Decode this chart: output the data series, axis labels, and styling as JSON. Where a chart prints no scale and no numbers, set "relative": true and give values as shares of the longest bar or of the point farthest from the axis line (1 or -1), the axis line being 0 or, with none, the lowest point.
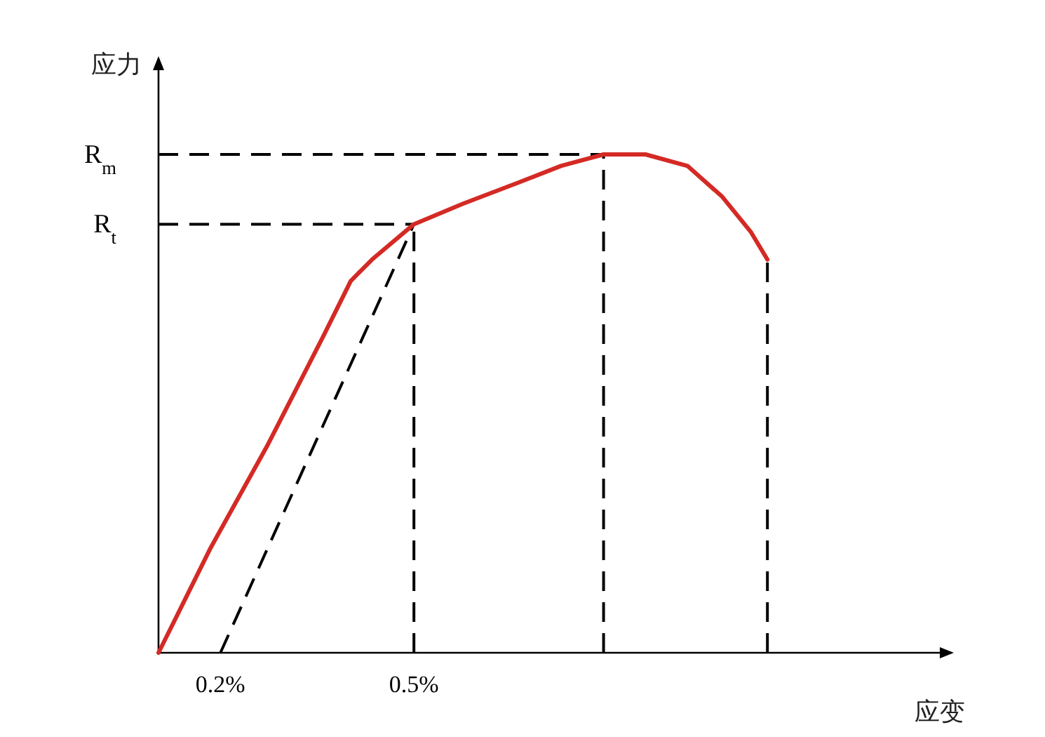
{
  "chart_data": {
    "type": "line",
    "relative": true,
    "ylabel": "应力",
    "xlabel": "应变",
    "xlim": [
      0.104,
      1.337
    ],
    "xticks": [
      {
        "value": 0.2,
        "label": "0.2%"
      },
      {
        "value": 0.5,
        "label": "0.5%"
      }
    ],
    "series": [
      {
        "color": "#d42a25",
        "x": [
          0.104,
          0.185,
          0.272,
          0.359,
          0.402,
          0.435,
          0.5,
          0.576,
          0.663,
          0.728,
          0.794,
          0.859,
          0.924,
          0.978,
          1.022,
          1.048
        ],
        "values": [
          0,
          0.211,
          0.414,
          0.634,
          0.746,
          0.789,
          0.86,
          0.901,
          0.944,
          0.977,
          1,
          1,
          0.977,
          0.915,
          0.845,
          0.789
        ]
      },
      {
        "color": "#000000",
        "line_style": "dashed",
        "x": [
          0.2,
          0.5
        ],
        "values": [
          0,
          0.86
        ]
      },
      {
        "color": "#000000",
        "line_style": "dashed",
        "x": [
          0.5,
          0.5
        ],
        "values": [
          0,
          0.86
        ]
      },
      {
        "color": "#000000",
        "line_style": "dashed",
        "x": [
          0.794,
          0.794
        ],
        "values": [
          0,
          1
        ]
      },
      {
        "color": "#000000",
        "line_style": "dashed",
        "x": [
          1.048,
          1.048
        ],
        "values": [
          0,
          0.789
        ]
      },
      {
        "color": "#000000",
        "line_style": "dashed",
        "x": [
          0.104,
          0.794
        ],
        "values": [
          1,
          1
        ]
      },
      {
        "color": "#000000",
        "line_style": "dashed",
        "x": [
          0.104,
          0.5
        ],
        "values": [
          0.86,
          0.86
        ]
      }
    ],
    "annotations": [
      {
        "text": "R$_{m}$",
        "x": 0.104,
        "y": 1
      },
      {
        "text": "R$_{t}$",
        "x": 0.104,
        "y": 0.86
      }
    ]
  }
}
